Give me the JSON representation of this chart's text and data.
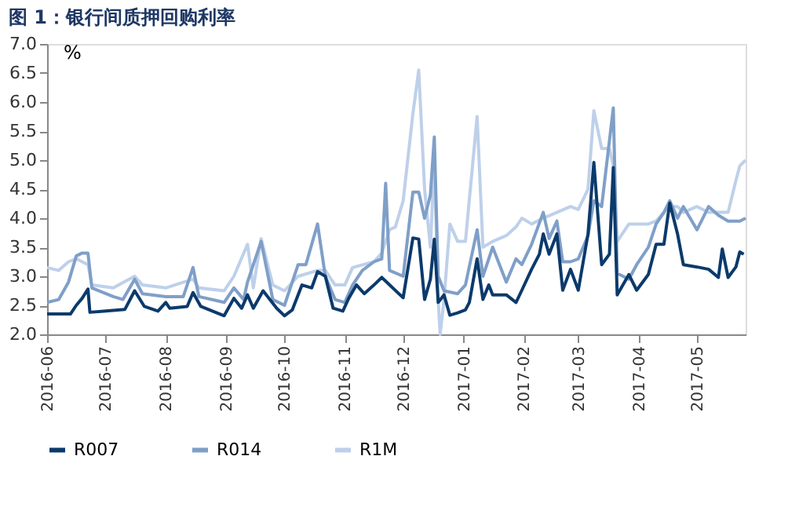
{
  "chart_data": {
    "type": "line",
    "title": "图 1：银行间质押回购利率",
    "ylabel": "%",
    "xlim": [
      "2016-06-01",
      "2017-05-26"
    ],
    "xticks": [
      {
        "value": "2016-06-01",
        "label": "2016-06"
      },
      {
        "value": "2016-07-01",
        "label": "2016-07"
      },
      {
        "value": "2016-08-01",
        "label": "2016-08"
      },
      {
        "value": "2016-09-01",
        "label": "2016-09"
      },
      {
        "value": "2016-10-01",
        "label": "2016-10"
      },
      {
        "value": "2016-11-01",
        "label": "2016-11"
      },
      {
        "value": "2016-12-01",
        "label": "2016-12"
      },
      {
        "value": "2017-01-01",
        "label": "2017-01"
      },
      {
        "value": "2017-02-01",
        "label": "2017-02"
      },
      {
        "value": "2017-03-01",
        "label": "2017-03"
      },
      {
        "value": "2017-04-01",
        "label": "2017-04"
      },
      {
        "value": "2017-05-01",
        "label": "2017-05"
      }
    ],
    "ylim": [
      2.0,
      7.0
    ],
    "yticks": [
      {
        "value": 2,
        "label": "2.0"
      },
      2.5,
      {
        "value": 3,
        "label": "3.0"
      },
      3.5,
      {
        "value": 4,
        "label": "4.0"
      },
      4.5,
      {
        "value": 5,
        "label": "5.0"
      },
      5.5,
      {
        "value": 6,
        "label": "6.0"
      },
      6.5,
      {
        "value": 7,
        "label": "7.0"
      }
    ],
    "grid": false,
    "legend": "bottom",
    "line_style": "solid",
    "series": [
      {
        "name": "R007",
        "color": "#0b3a6b",
        "x": [
          "2016-06-01",
          "2016-06-13",
          "2016-06-16",
          "2016-06-19",
          "2016-06-22",
          "2016-06-23",
          "2016-06-30",
          "2016-07-11",
          "2016-07-16",
          "2016-07-21",
          "2016-07-28",
          "2016-08-01",
          "2016-08-03",
          "2016-08-12",
          "2016-08-15",
          "2016-08-19",
          "2016-08-31",
          "2016-09-05",
          "2016-09-09",
          "2016-09-12",
          "2016-09-15",
          "2016-09-20",
          "2016-09-27",
          "2016-10-01",
          "2016-10-05",
          "2016-10-10",
          "2016-10-15",
          "2016-10-18",
          "2016-10-22",
          "2016-10-26",
          "2016-10-31",
          "2016-11-03",
          "2016-11-07",
          "2016-11-11",
          "2016-11-16",
          "2016-11-20",
          "2016-12-01",
          "2016-12-06",
          "2016-12-09",
          "2016-12-12",
          "2016-12-15",
          "2016-12-17",
          "2016-12-19",
          "2016-12-22",
          "2016-12-25",
          "2016-12-29",
          "2017-01-02",
          "2017-01-04",
          "2017-01-08",
          "2017-01-11",
          "2017-01-14",
          "2017-01-16",
          "2017-01-23",
          "2017-01-28",
          "2017-01-31",
          "2017-02-05",
          "2017-02-09",
          "2017-02-11",
          "2017-02-14",
          "2017-02-18",
          "2017-02-21",
          "2017-02-25",
          "2017-03-01",
          "2017-03-06",
          "2017-03-09",
          "2017-03-11",
          "2017-03-13",
          "2017-03-17",
          "2017-03-19",
          "2017-03-21",
          "2017-03-27",
          "2017-03-31",
          "2017-04-06",
          "2017-04-10",
          "2017-04-14",
          "2017-04-17",
          "2017-04-21",
          "2017-04-24",
          "2017-05-01",
          "2017-05-07",
          "2017-05-12",
          "2017-05-14",
          "2017-05-17",
          "2017-05-21",
          "2017-05-23",
          "2017-05-25"
        ],
        "values": [
          2.35,
          2.35,
          2.5,
          2.62,
          2.78,
          2.38,
          2.4,
          2.43,
          2.75,
          2.48,
          2.4,
          2.55,
          2.45,
          2.48,
          2.72,
          2.48,
          2.32,
          2.62,
          2.45,
          2.68,
          2.45,
          2.75,
          2.45,
          2.32,
          2.42,
          2.85,
          2.8,
          3.08,
          3.0,
          2.45,
          2.4,
          2.62,
          2.85,
          2.7,
          2.85,
          2.98,
          2.63,
          3.66,
          3.64,
          2.6,
          2.95,
          3.64,
          2.55,
          2.68,
          2.33,
          2.37,
          2.42,
          2.55,
          3.3,
          2.6,
          2.85,
          2.68,
          2.68,
          2.55,
          2.76,
          3.12,
          3.38,
          3.73,
          3.38,
          3.73,
          2.76,
          3.12,
          2.76,
          3.73,
          4.96,
          4.08,
          3.2,
          3.38,
          4.87,
          2.68,
          3.03,
          2.76,
          3.03,
          3.55,
          3.55,
          4.26,
          3.73,
          3.2,
          3.16,
          3.12,
          2.98,
          3.47,
          2.98,
          3.16,
          3.42,
          3.38
        ]
      },
      {
        "name": "R014",
        "color": "#7f9fc8",
        "x": [
          "2016-06-01",
          "2016-06-07",
          "2016-06-12",
          "2016-06-16",
          "2016-06-19",
          "2016-06-22",
          "2016-06-24",
          "2016-07-05",
          "2016-07-10",
          "2016-07-16",
          "2016-07-20",
          "2016-08-01",
          "2016-08-10",
          "2016-08-15",
          "2016-08-18",
          "2016-08-31",
          "2016-09-05",
          "2016-09-10",
          "2016-09-12",
          "2016-09-19",
          "2016-09-25",
          "2016-10-01",
          "2016-10-08",
          "2016-10-12",
          "2016-10-18",
          "2016-10-22",
          "2016-10-27",
          "2016-11-01",
          "2016-11-05",
          "2016-11-10",
          "2016-11-16",
          "2016-11-20",
          "2016-11-22",
          "2016-11-24",
          "2016-12-01",
          "2016-12-06",
          "2016-12-09",
          "2016-12-12",
          "2016-12-15",
          "2016-12-17",
          "2016-12-19",
          "2016-12-22",
          "2016-12-29",
          "2017-01-02",
          "2017-01-08",
          "2017-01-11",
          "2017-01-16",
          "2017-01-23",
          "2017-01-28",
          "2017-01-31",
          "2017-02-05",
          "2017-02-11",
          "2017-02-14",
          "2017-02-18",
          "2017-02-21",
          "2017-02-25",
          "2017-03-01",
          "2017-03-06",
          "2017-03-09",
          "2017-03-13",
          "2017-03-19",
          "2017-03-21",
          "2017-03-27",
          "2017-03-31",
          "2017-04-06",
          "2017-04-10",
          "2017-04-14",
          "2017-04-17",
          "2017-04-21",
          "2017-04-24",
          "2017-05-01",
          "2017-05-07",
          "2017-05-12",
          "2017-05-17",
          "2017-05-23",
          "2017-05-26"
        ],
        "values": [
          2.55,
          2.6,
          2.9,
          3.35,
          3.4,
          3.4,
          2.8,
          2.65,
          2.6,
          2.95,
          2.7,
          2.65,
          2.65,
          3.15,
          2.65,
          2.55,
          2.8,
          2.6,
          2.9,
          3.6,
          2.6,
          2.5,
          3.2,
          3.2,
          3.9,
          3.0,
          2.6,
          2.55,
          2.85,
          3.1,
          3.25,
          3.3,
          4.6,
          3.1,
          3.0,
          4.45,
          4.45,
          4.0,
          4.4,
          5.4,
          3.0,
          2.75,
          2.7,
          2.85,
          3.8,
          3.0,
          3.5,
          2.9,
          3.3,
          3.2,
          3.55,
          4.1,
          3.65,
          3.95,
          3.25,
          3.25,
          3.3,
          3.7,
          4.3,
          4.2,
          5.9,
          3.05,
          2.95,
          3.2,
          3.5,
          3.9,
          4.1,
          4.3,
          4.0,
          4.2,
          3.8,
          4.2,
          4.05,
          3.95,
          3.95,
          4.0
        ]
      },
      {
        "name": "R1M",
        "color": "#bed0ea",
        "x": [
          "2016-06-01",
          "2016-06-07",
          "2016-06-12",
          "2016-06-16",
          "2016-06-22",
          "2016-06-24",
          "2016-07-05",
          "2016-07-16",
          "2016-07-20",
          "2016-08-01",
          "2016-08-15",
          "2016-08-18",
          "2016-08-31",
          "2016-09-05",
          "2016-09-12",
          "2016-09-15",
          "2016-09-19",
          "2016-09-25",
          "2016-10-01",
          "2016-10-08",
          "2016-10-18",
          "2016-10-22",
          "2016-10-27",
          "2016-11-01",
          "2016-11-05",
          "2016-11-16",
          "2016-11-20",
          "2016-11-24",
          "2016-11-27",
          "2016-12-01",
          "2016-12-06",
          "2016-12-09",
          "2016-12-12",
          "2016-12-15",
          "2016-12-17",
          "2016-12-19",
          "2016-12-20",
          "2016-12-22",
          "2016-12-25",
          "2016-12-29",
          "2017-01-02",
          "2017-01-08",
          "2017-01-11",
          "2017-01-16",
          "2017-01-23",
          "2017-01-28",
          "2017-01-31",
          "2017-02-05",
          "2017-02-11",
          "2017-02-18",
          "2017-02-25",
          "2017-03-01",
          "2017-03-06",
          "2017-03-09",
          "2017-03-13",
          "2017-03-17",
          "2017-03-19",
          "2017-03-21",
          "2017-03-27",
          "2017-03-31",
          "2017-04-06",
          "2017-04-10",
          "2017-04-14",
          "2017-04-17",
          "2017-04-21",
          "2017-04-24",
          "2017-05-01",
          "2017-05-07",
          "2017-05-12",
          "2017-05-17",
          "2017-05-21",
          "2017-05-23",
          "2017-05-26"
        ],
        "values": [
          3.15,
          3.1,
          3.25,
          3.3,
          3.2,
          2.85,
          2.8,
          3.0,
          2.85,
          2.8,
          2.95,
          2.8,
          2.75,
          3.0,
          3.55,
          2.8,
          3.65,
          2.85,
          2.75,
          3.0,
          3.1,
          3.1,
          2.85,
          2.85,
          3.15,
          3.25,
          3.4,
          3.8,
          3.85,
          4.3,
          5.8,
          6.55,
          4.5,
          3.5,
          5.0,
          2.6,
          2.0,
          2.6,
          3.9,
          3.6,
          3.6,
          5.75,
          3.5,
          3.6,
          3.7,
          3.85,
          4.0,
          3.9,
          4.0,
          4.1,
          4.2,
          4.15,
          4.5,
          5.85,
          5.2,
          5.2,
          4.9,
          3.6,
          3.9,
          3.9,
          3.9,
          3.95,
          4.1,
          4.2,
          4.2,
          4.1,
          4.2,
          4.1,
          4.1,
          4.1,
          4.65,
          4.9,
          5.0
        ]
      }
    ]
  }
}
